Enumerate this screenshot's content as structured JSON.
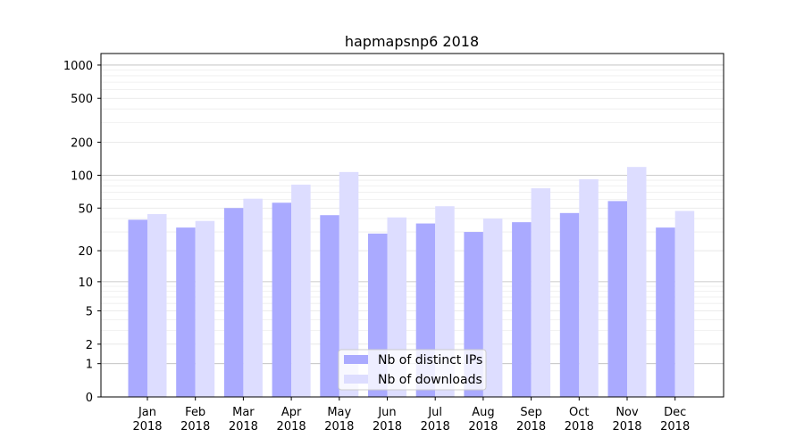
{
  "chart_data": {
    "type": "bar",
    "title": "hapmapsnp6 2018",
    "xlabel": "",
    "ylabel": "",
    "yscale": "symlog (log10(v+1))",
    "ylim": [
      0,
      1270
    ],
    "yticks": [
      0,
      1,
      2,
      5,
      10,
      20,
      50,
      100,
      200,
      500,
      1000
    ],
    "grid": true,
    "legend_position": "bottom-center",
    "categories": [
      "Jan\n2018",
      "Feb\n2018",
      "Mar\n2018",
      "Apr\n2018",
      "May\n2018",
      "Jun\n2018",
      "Jul\n2018",
      "Aug\n2018",
      "Sep\n2018",
      "Oct\n2018",
      "Nov\n2018",
      "Dec\n2018"
    ],
    "series": [
      {
        "name": "Nb of distinct IPs",
        "color": "#aaaaff",
        "values": [
          39,
          33,
          50,
          56,
          43,
          29,
          36,
          30,
          37,
          45,
          58,
          33
        ]
      },
      {
        "name": "Nb of downloads",
        "color": "#ddddff",
        "values": [
          44,
          38,
          61,
          82,
          107,
          41,
          52,
          40,
          76,
          92,
          119,
          47
        ]
      }
    ]
  }
}
